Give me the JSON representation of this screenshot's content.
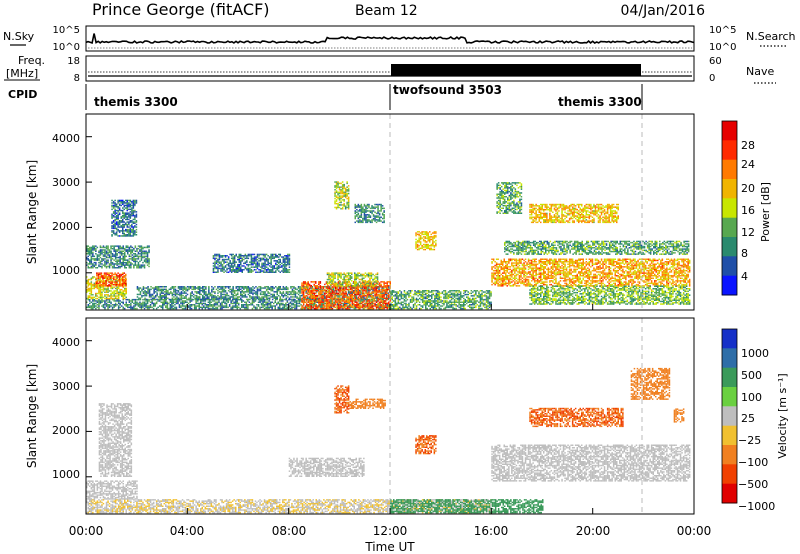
{
  "header": {
    "station": "Prince George (fitACF)",
    "beam": "Beam 12",
    "date": "04/Jan/2016"
  },
  "strips": {
    "nsky_label": "N.Sky",
    "nsearch_label": "N.Search",
    "freq_label_1": "Freq.",
    "freq_label_2": "[MHz]",
    "cpid_label": "CPID",
    "nave_label": "Nave",
    "noise_ticks": [
      "10^5",
      "10^0"
    ],
    "freq_ticks": [
      "18",
      "8"
    ],
    "nave_ticks": [
      "60",
      "0"
    ]
  },
  "cpid_segments": [
    {
      "label": "themis 3300",
      "start_hour": 0
    },
    {
      "label": "twofsound 3503",
      "start_hour": 12
    },
    {
      "label": "themis 3300",
      "start_hour": 19.5
    }
  ],
  "axes": {
    "x_title": "Time UT",
    "x_ticks": [
      "00:00",
      "04:00",
      "08:00",
      "12:00",
      "16:00",
      "20:00",
      "00:00"
    ],
    "x_hours": [
      0,
      4,
      8,
      12,
      16,
      20,
      24
    ],
    "y_title": "Slant Range [km]",
    "y_ticks": [
      "4000",
      "3000",
      "2000",
      "1000"
    ],
    "y_values": [
      4000,
      3000,
      2000,
      1000
    ],
    "y_range": [
      180,
      4500
    ],
    "boundary_hours": [
      12,
      22
    ]
  },
  "power_scale": {
    "title": "Power [dB]",
    "labels": [
      "28",
      "24",
      "20",
      "16",
      "12",
      "8",
      "4"
    ],
    "colors": [
      "#e60000",
      "#ff2a00",
      "#ff7a00",
      "#f0b400",
      "#c8e600",
      "#58a850",
      "#2a8a6e",
      "#1f4fa8",
      "#0a14ff"
    ]
  },
  "velocity_scale": {
    "title": "Velocity [m s⁻¹]",
    "labels": [
      "1000",
      "500",
      "100",
      "25",
      "−25",
      "−100",
      "−500",
      "−1000"
    ],
    "colors": [
      "#1530c8",
      "#2e6ea8",
      "#3a9a5a",
      "#6ad040",
      "#bebebe",
      "#f0c030",
      "#f08020",
      "#f04000",
      "#e00000"
    ]
  },
  "chart_data": [
    {
      "type": "heatmap",
      "quantity": "Power [dB]",
      "x_unit": "hour UT",
      "y_unit": "km",
      "xlim": [
        0,
        24
      ],
      "ylim": [
        180,
        4500
      ],
      "regions": [
        {
          "t": [
            0,
            12.0
          ],
          "r": [
            200,
            420
          ],
          "value": 8
        },
        {
          "t": [
            0,
            1.6
          ],
          "r": [
            420,
            900
          ],
          "value": 16
        },
        {
          "t": [
            0.4,
            1.6
          ],
          "r": [
            700,
            1000
          ],
          "value": 24
        },
        {
          "t": [
            0,
            2.5
          ],
          "r": [
            1100,
            1600
          ],
          "value": 8
        },
        {
          "t": [
            1.0,
            2.0
          ],
          "r": [
            1800,
            2600
          ],
          "value": 6
        },
        {
          "t": [
            2.0,
            12.0
          ],
          "r": [
            400,
            700
          ],
          "value": 8
        },
        {
          "t": [
            5.0,
            8.0
          ],
          "r": [
            1000,
            1400
          ],
          "value": 6
        },
        {
          "t": [
            8.5,
            12.0
          ],
          "r": [
            200,
            800
          ],
          "value": 24
        },
        {
          "t": [
            9.5,
            11.5
          ],
          "r": [
            700,
            1000
          ],
          "value": 14
        },
        {
          "t": [
            9.8,
            10.4
          ],
          "r": [
            2400,
            3000
          ],
          "value": 14
        },
        {
          "t": [
            10.6,
            11.8
          ],
          "r": [
            2100,
            2500
          ],
          "value": 8
        },
        {
          "t": [
            12.0,
            16.0
          ],
          "r": [
            200,
            600
          ],
          "value": 10
        },
        {
          "t": [
            13.0,
            13.8
          ],
          "r": [
            1500,
            1900
          ],
          "value": 18
        },
        {
          "t": [
            16.0,
            23.8
          ],
          "r": [
            700,
            1300
          ],
          "value": 20
        },
        {
          "t": [
            16.5,
            23.8
          ],
          "r": [
            1400,
            1700
          ],
          "value": 10
        },
        {
          "t": [
            17.5,
            21.0
          ],
          "r": [
            2100,
            2500
          ],
          "value": 18
        },
        {
          "t": [
            16.2,
            17.2
          ],
          "r": [
            2300,
            3000
          ],
          "value": 10
        },
        {
          "t": [
            17.5,
            23.8
          ],
          "r": [
            300,
            700
          ],
          "value": 12
        }
      ]
    },
    {
      "type": "heatmap",
      "quantity": "Velocity [m s⁻¹]",
      "x_unit": "hour UT",
      "y_unit": "km",
      "xlim": [
        0,
        24
      ],
      "ylim": [
        180,
        4500
      ],
      "regions": [
        {
          "t": [
            0,
            16.0
          ],
          "r": [
            200,
            500
          ],
          "value": -20
        },
        {
          "t": [
            0,
            2.0
          ],
          "r": [
            500,
            900
          ],
          "value": 0
        },
        {
          "t": [
            0.5,
            1.8
          ],
          "r": [
            1000,
            2600
          ],
          "value": 0
        },
        {
          "t": [
            8.0,
            11.0
          ],
          "r": [
            1000,
            1400
          ],
          "value": 0
        },
        {
          "t": [
            9.8,
            10.4
          ],
          "r": [
            2400,
            3000
          ],
          "value": -300
        },
        {
          "t": [
            10.4,
            11.8
          ],
          "r": [
            2500,
            2700
          ],
          "value": -100
        },
        {
          "t": [
            13.0,
            13.8
          ],
          "r": [
            1500,
            1900
          ],
          "value": -300
        },
        {
          "t": [
            16.0,
            23.8
          ],
          "r": [
            900,
            1700
          ],
          "value": 0
        },
        {
          "t": [
            17.5,
            21.2
          ],
          "r": [
            2100,
            2500
          ],
          "value": -300
        },
        {
          "t": [
            21.5,
            23.0
          ],
          "r": [
            2700,
            3400
          ],
          "value": -150
        },
        {
          "t": [
            23.2,
            23.6
          ],
          "r": [
            2200,
            2500
          ],
          "value": -200
        },
        {
          "t": [
            12.0,
            18.0
          ],
          "r": [
            200,
            500
          ],
          "value": 80
        }
      ]
    }
  ]
}
